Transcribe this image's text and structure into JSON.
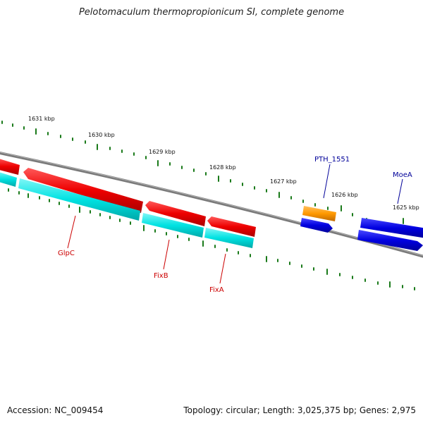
{
  "title": "Pelotomaculum thermopropionicum SI, complete genome",
  "footer": {
    "accession": "Accession: NC_009454",
    "stats": "Topology: circular; Length: 3,025,375 bp; Genes: 2,975"
  },
  "ticks": [
    {
      "label": "1631 kbp"
    },
    {
      "label": "1630 kbp"
    },
    {
      "label": "1629 kbp"
    },
    {
      "label": "1628 kbp"
    },
    {
      "label": "1627 kbp"
    },
    {
      "label": "1626 kbp"
    },
    {
      "label": "1625 kbp"
    }
  ],
  "genes": [
    {
      "label": "GlpC",
      "strand": "reverse"
    },
    {
      "label": "FixB",
      "strand": "reverse"
    },
    {
      "label": "FixA",
      "strand": "reverse"
    },
    {
      "label": "PTH_1551",
      "strand": "forward"
    },
    {
      "label": "MoeA",
      "strand": "forward"
    }
  ],
  "colors": {
    "backbone": "#808080",
    "cds_red": "#ff0000",
    "cds_cyan": "#00e5e5",
    "cds_blue": "#0000e6",
    "cds_orange": "#ff9900",
    "tick_green": "#1a7a1a"
  }
}
